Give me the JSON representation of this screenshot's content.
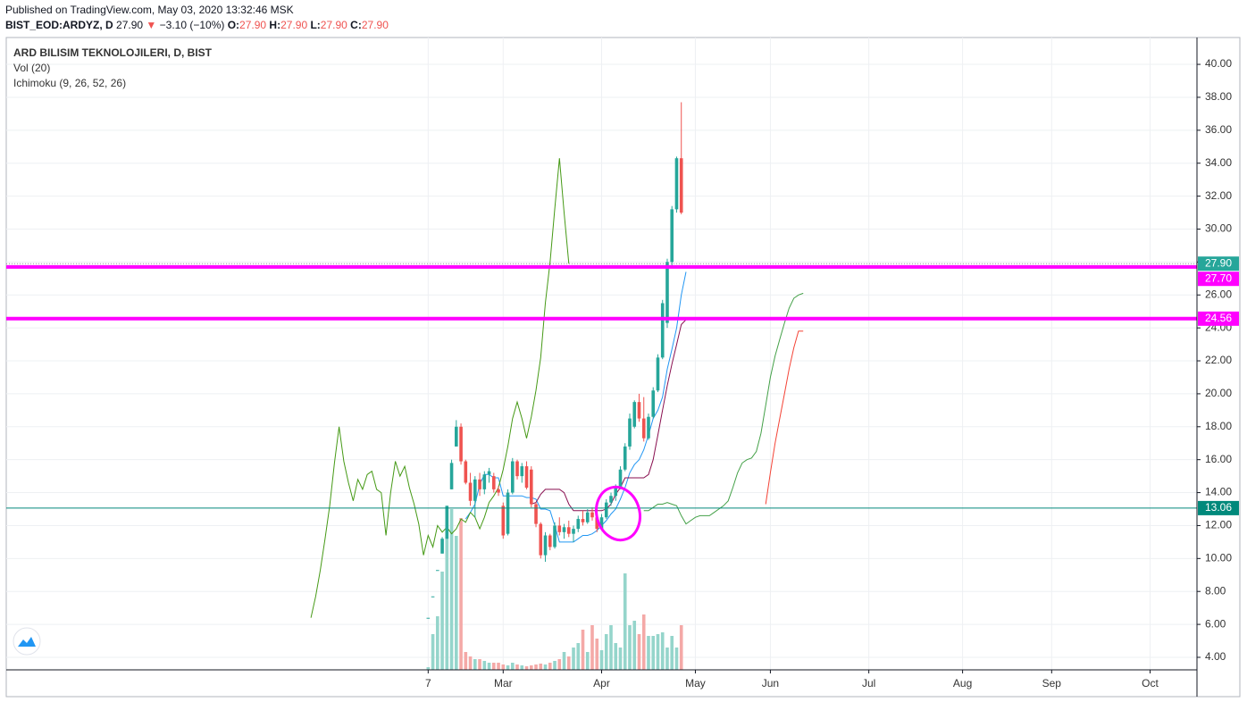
{
  "header": {
    "published": "Published on TradingView.com, May 03, 2020 13:32:46 MSK",
    "symbol": "BIST_EOD:ARDYZ, D",
    "price": "27.90",
    "arrow": "▼",
    "change": "−3.10 (−10%)",
    "ohlc": [
      {
        "k": "O:",
        "v": "27.90"
      },
      {
        "k": "H:",
        "v": "27.90"
      },
      {
        "k": "L:",
        "v": "27.90"
      },
      {
        "k": "C:",
        "v": "27.90"
      }
    ]
  },
  "chart_data": {
    "type": "candlestick",
    "legend": [
      "ARD BILISIM TEKNOLOJILERI, D, BIST",
      "Vol (20)",
      "Ichimoku (9, 26, 52, 26)"
    ],
    "xlim": [
      -90,
      164
    ],
    "ylim": [
      3.24,
      41.63
    ],
    "xticks": [
      {
        "value": 0,
        "label": "7"
      },
      {
        "value": 16,
        "label": "Mar"
      },
      {
        "value": 37,
        "label": "Apr"
      },
      {
        "value": 57,
        "label": "May"
      },
      {
        "value": 73,
        "label": "Jun"
      },
      {
        "value": 94,
        "label": "Jul"
      },
      {
        "value": 114,
        "label": "Aug"
      },
      {
        "value": 133,
        "label": "Sep"
      },
      {
        "value": 154,
        "label": "Oct"
      }
    ],
    "yticks": [
      {
        "value": 4,
        "label": "4.00"
      },
      {
        "value": 6,
        "label": "6.00"
      },
      {
        "value": 8,
        "label": "8.00"
      },
      {
        "value": 10,
        "label": "10.00"
      },
      {
        "value": 12,
        "label": "12.00"
      },
      {
        "value": 14,
        "label": "14.00"
      },
      {
        "value": 16,
        "label": "16.00"
      },
      {
        "value": 18,
        "label": "18.00"
      },
      {
        "value": 20,
        "label": "20.00"
      },
      {
        "value": 22,
        "label": "22.00"
      },
      {
        "value": 24,
        "label": "24.00"
      },
      {
        "value": 26,
        "label": "26.00"
      },
      {
        "value": 28,
        "label": "28.00"
      },
      {
        "value": 30,
        "label": "30.00"
      },
      {
        "value": 32,
        "label": "32.00"
      },
      {
        "value": 34,
        "label": "34.00"
      },
      {
        "value": 36,
        "label": "36.00"
      },
      {
        "value": 38,
        "label": "38.00"
      },
      {
        "value": 40,
        "label": "40.00"
      }
    ],
    "grid": true,
    "colors": {
      "up": "#26a69a",
      "down": "#ef5350",
      "vol_up": "#95d5cb",
      "vol_down": "#f4a9a7"
    },
    "candles": {
      "x": [
        0,
        1,
        2,
        3,
        4,
        5,
        6,
        7,
        8,
        9,
        10,
        11,
        12,
        13,
        14,
        15,
        16,
        17,
        18,
        19,
        20,
        21,
        22,
        23,
        24,
        25,
        26,
        27,
        28,
        29,
        30,
        31,
        32,
        33,
        34,
        35,
        36,
        37,
        38,
        39,
        40,
        41,
        42,
        43,
        44,
        45,
        46,
        47,
        48,
        49,
        50,
        51,
        52,
        53,
        54
      ],
      "open": [
        6.4,
        7.7,
        9.3,
        10.3,
        11.2,
        14.2,
        16.8,
        18.0,
        15.9,
        14.6,
        13.5,
        14.8,
        14.2,
        15.1,
        15.0,
        14.2,
        13.2,
        11.5,
        14.0,
        15.9,
        15.0,
        15.6,
        15.4,
        13.3,
        12.1,
        10.2,
        11.4,
        10.7,
        12.0,
        11.6,
        11.9,
        11.5,
        11.8,
        12.4,
        12.2,
        12.8,
        12.5,
        11.8,
        12.5,
        13.4,
        13.8,
        14.3,
        15.4,
        16.8,
        18.0,
        19.5,
        18.5,
        17.3,
        18.6,
        20.2,
        22.2,
        24.3,
        28.0,
        31.2,
        34.3
      ],
      "high": [
        6.4,
        7.7,
        9.3,
        11.3,
        13.2,
        16.0,
        18.4,
        18.2,
        16.0,
        15.2,
        15.0,
        15.2,
        15.3,
        15.5,
        15.2,
        14.4,
        13.4,
        14.2,
        16.1,
        16.0,
        15.8,
        15.9,
        15.6,
        13.4,
        12.2,
        11.6,
        11.5,
        12.2,
        12.5,
        12.1,
        12.3,
        12.0,
        12.6,
        12.9,
        13.0,
        13.1,
        12.9,
        12.7,
        13.6,
        14.0,
        14.5,
        15.6,
        17.0,
        18.8,
        19.6,
        20.0,
        19.8,
        18.8,
        20.4,
        22.4,
        25.7,
        28.2,
        31.4,
        34.4,
        37.7
      ],
      "low": [
        6.4,
        7.7,
        9.3,
        10.3,
        11.2,
        14.2,
        16.8,
        15.7,
        14.5,
        13.2,
        12.5,
        13.8,
        13.9,
        14.6,
        14.0,
        13.8,
        11.2,
        11.4,
        13.9,
        14.8,
        14.6,
        14.2,
        13.1,
        11.9,
        10.0,
        9.8,
        10.5,
        10.6,
        11.4,
        11.2,
        11.3,
        11.0,
        11.6,
        12.0,
        12.1,
        12.3,
        11.6,
        11.7,
        12.4,
        13.2,
        13.5,
        14.2,
        15.3,
        16.6,
        17.9,
        18.3,
        17.1,
        17.2,
        18.5,
        20.1,
        22.1,
        24.0,
        27.8,
        31.0,
        30.9
      ],
      "close": [
        6.4,
        7.7,
        9.3,
        11.2,
        13.2,
        15.8,
        18.0,
        15.9,
        14.6,
        13.5,
        14.8,
        14.2,
        15.1,
        15.3,
        14.2,
        14.0,
        11.4,
        14.0,
        15.9,
        15.0,
        15.6,
        14.3,
        13.3,
        12.1,
        10.2,
        11.4,
        10.7,
        12.0,
        11.6,
        11.9,
        11.5,
        11.8,
        12.4,
        12.2,
        12.8,
        12.5,
        11.8,
        12.5,
        13.4,
        13.8,
        14.3,
        15.4,
        16.8,
        18.5,
        19.5,
        18.5,
        17.3,
        18.6,
        20.2,
        22.2,
        25.5,
        28.0,
        31.2,
        34.3,
        31.0
      ]
    },
    "volume": [
      3,
      40,
      60,
      110,
      180,
      180,
      150,
      170,
      20,
      15,
      12,
      12,
      10,
      8,
      8,
      8,
      6,
      5,
      8,
      6,
      5,
      4,
      5,
      6,
      7,
      6,
      8,
      10,
      12,
      20,
      15,
      25,
      30,
      45,
      20,
      50,
      35,
      22,
      40,
      50,
      30,
      25,
      108,
      50,
      55,
      40,
      62,
      38,
      38,
      40,
      42,
      25,
      38,
      25,
      50
    ],
    "volume_ylim": [
      0,
      708
    ],
    "lines": [
      {
        "color": "#2196f3",
        "x": [
          8,
          9,
          10,
          11,
          12,
          13,
          14,
          15,
          16,
          17,
          18,
          19,
          20,
          21,
          22,
          23,
          24,
          25,
          26,
          27,
          28,
          29,
          30,
          31,
          32,
          33,
          34,
          35,
          36,
          37,
          38,
          39,
          40,
          41,
          42,
          43,
          44,
          45,
          46,
          47,
          48,
          49,
          50,
          51,
          52,
          53,
          54,
          55
        ],
        "values": [
          12.4,
          12.8,
          13.3,
          14.5,
          15.1,
          15.1,
          14.9,
          14.9,
          13.8,
          13.8,
          13.8,
          13.8,
          13.8,
          13.7,
          13.7,
          13.6,
          13.0,
          13.0,
          12.9,
          12.0,
          11.0,
          11.0,
          11.0,
          11.0,
          11.2,
          11.4,
          11.4,
          11.5,
          11.7,
          12.0,
          12.3,
          12.7,
          13.0,
          13.6,
          14.3,
          15.2,
          15.7,
          16.0,
          16.6,
          17.5,
          18.5,
          19.0,
          19.8,
          21.5,
          22.7,
          24.0,
          26.0,
          27.4
        ]
      },
      {
        "color": "#880e4f",
        "x": [
          22,
          23,
          24,
          25,
          26,
          27,
          28,
          29,
          30,
          31,
          32,
          33,
          34,
          35,
          36,
          37,
          38,
          39,
          40,
          41,
          42,
          43,
          44,
          45,
          46,
          47,
          48,
          49,
          50,
          51,
          52,
          53,
          54,
          55
        ],
        "values": [
          13.3,
          13.4,
          13.9,
          14.2,
          14.2,
          14.2,
          14.2,
          14.0,
          13.3,
          12.9,
          12.9,
          12.9,
          12.9,
          12.9,
          12.9,
          12.9,
          13.0,
          13.3,
          13.9,
          14.3,
          14.9,
          14.9,
          14.9,
          14.9,
          14.9,
          15.1,
          16.0,
          17.5,
          19.0,
          20.5,
          21.8,
          23.0,
          24.2,
          24.5
        ]
      },
      {
        "color": "#459915",
        "x": [
          -25,
          -24,
          -23,
          -22,
          -21,
          -20,
          -19,
          -18,
          -17,
          -16,
          -15,
          -14,
          -13,
          -12,
          -11,
          -10,
          -9,
          -8,
          -7,
          -6,
          -5,
          -4,
          -3,
          -2,
          -1,
          0,
          1,
          2,
          3,
          4,
          5,
          6,
          7,
          8,
          9,
          10,
          11,
          12,
          13,
          14,
          15,
          16,
          17,
          18,
          19,
          20,
          21,
          22,
          23,
          24,
          25,
          26,
          27,
          28,
          29,
          30
        ],
        "values": [
          6.4,
          7.7,
          9.3,
          11.2,
          13.2,
          15.8,
          18.0,
          15.9,
          14.6,
          13.5,
          14.8,
          14.2,
          15.1,
          15.3,
          14.2,
          14.0,
          11.4,
          14.0,
          15.9,
          15.0,
          15.6,
          14.3,
          13.3,
          12.1,
          10.2,
          11.4,
          10.7,
          12.0,
          11.6,
          11.9,
          11.5,
          11.8,
          12.4,
          12.2,
          12.8,
          12.5,
          11.8,
          12.5,
          13.4,
          13.8,
          14.3,
          15.4,
          16.8,
          18.5,
          19.5,
          18.5,
          17.3,
          18.6,
          20.2,
          22.2,
          25.5,
          28.0,
          31.2,
          34.3,
          31.0,
          27.9
        ]
      },
      {
        "color": "#43a047",
        "x": [
          46,
          47,
          48,
          49,
          50,
          51,
          52,
          53,
          54,
          55,
          56,
          57,
          58,
          59,
          60,
          61,
          62,
          63,
          64,
          65,
          66,
          67,
          68,
          69,
          70,
          71,
          72,
          73,
          74,
          75,
          76,
          77,
          78,
          79,
          80
        ],
        "values": [
          12.9,
          12.9,
          13.1,
          13.3,
          13.3,
          13.4,
          13.3,
          13.2,
          12.6,
          12.1,
          12.3,
          12.5,
          12.6,
          12.6,
          12.6,
          12.8,
          13.0,
          13.2,
          13.5,
          14.3,
          15.2,
          15.8,
          16.0,
          16.1,
          16.5,
          17.6,
          19.3,
          21.0,
          22.3,
          23.3,
          24.3,
          25.2,
          25.8,
          26.0,
          26.1
        ]
      },
      {
        "color": "#f44336",
        "x": [
          72,
          73,
          74,
          75,
          76,
          77,
          78,
          79,
          80
        ],
        "values": [
          13.3,
          15.2,
          17.0,
          18.5,
          20.0,
          21.5,
          22.8,
          23.8,
          23.8
        ]
      }
    ],
    "hlines": [
      {
        "value": 27.9,
        "label": "27.90",
        "color": "#26a69a",
        "style": "dotted"
      },
      {
        "value": 27.7,
        "label": "27.70",
        "color": "#ff00ff",
        "style": "thick"
      },
      {
        "value": 24.56,
        "label": "24.56",
        "color": "#ff00ff",
        "style": "thick"
      },
      {
        "value": 13.06,
        "label": "13.06",
        "color": "#00897b",
        "style": "thin"
      }
    ]
  }
}
